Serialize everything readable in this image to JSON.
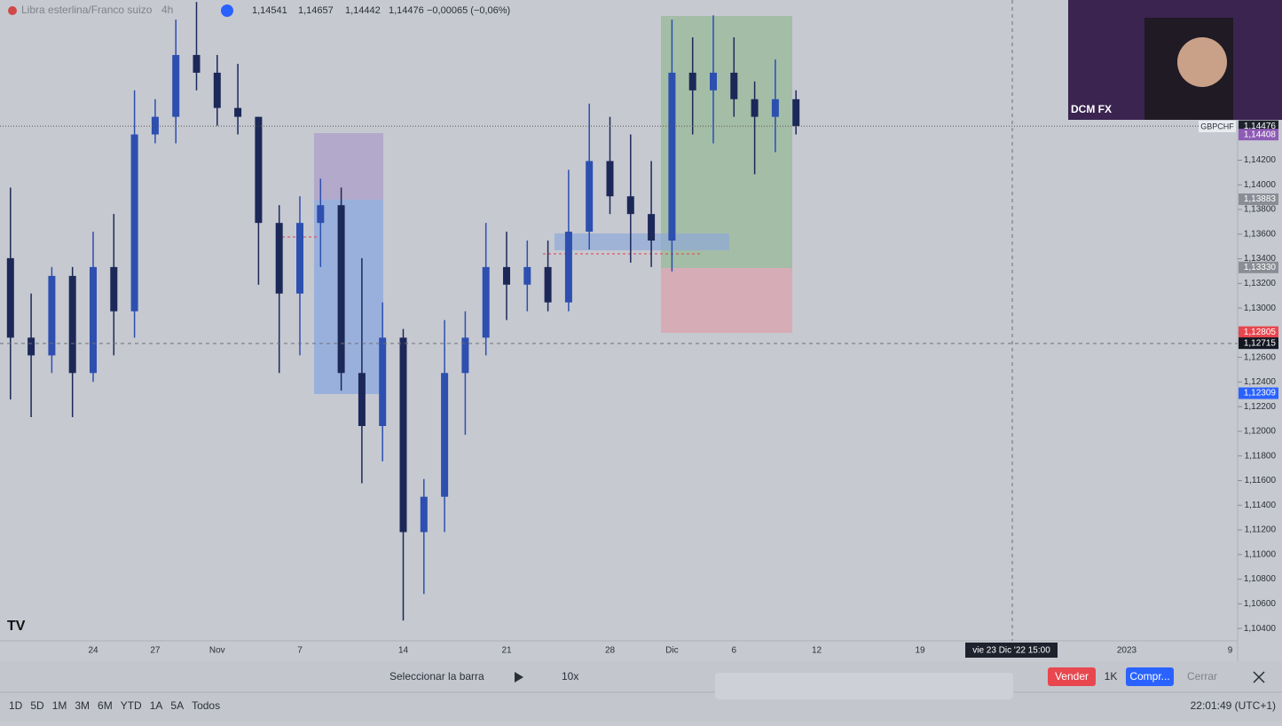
{
  "header": {
    "symbol": "Libra esterlina/Franco suizo",
    "interval": "4h",
    "open": "1,14541",
    "high": "1,14657",
    "low": "1,14442",
    "close": "1,14476",
    "change": "−0,00065 (−0,06%)"
  },
  "chart_data": {
    "type": "candlestick",
    "categories": [
      null,
      null,
      null,
      null,
      "24",
      null,
      null,
      "27",
      null,
      null,
      "Nov",
      null,
      null,
      null,
      "7",
      null,
      null,
      null,
      null,
      "14",
      null,
      null,
      null,
      null,
      "21",
      null,
      null,
      null,
      null,
      "28",
      null,
      null,
      "Dic",
      null,
      null,
      "6",
      null,
      null,
      null,
      "12",
      null,
      null,
      null,
      null,
      "19",
      null,
      null,
      null,
      null,
      null,
      null,
      null,
      null,
      null,
      "2023",
      null,
      null,
      null,
      null,
      "9"
    ],
    "open": [
      1.13405,
      1.1276,
      1.12616,
      1.13261,
      1.12473,
      1.13333,
      1.12974,
      1.14409,
      1.14552,
      1.15054,
      1.1491,
      1.14624,
      1.14552,
      1.13691,
      1.13118,
      1.13691,
      1.13835,
      1.12473,
      1.12043,
      1.1276,
      1.11182,
      1.11469,
      1.12473,
      1.1276,
      1.13333,
      1.1319,
      1.13333,
      1.13046,
      1.1362,
      1.14193,
      1.13907,
      1.13763,
      1.13548,
      1.1491,
      1.14767,
      1.1491,
      1.14695,
      1.14552,
      1.14695,
      null,
      null,
      null,
      null,
      null,
      null,
      null,
      null,
      null,
      null,
      null,
      null,
      null,
      null,
      null,
      null,
      null,
      null,
      null,
      null,
      null
    ],
    "high": [
      1.13978,
      1.13118,
      1.13333,
      1.13333,
      1.1362,
      1.13763,
      1.14767,
      1.14695,
      1.15341,
      1.15484,
      1.15054,
      1.14982,
      1.14552,
      1.13835,
      1.13907,
      1.1405,
      1.13978,
      1.13405,
      1.13046,
      1.12831,
      1.11613,
      1.12903,
      1.12974,
      1.13691,
      1.1362,
      1.13548,
      1.13548,
      1.14122,
      1.14659,
      1.14552,
      1.14409,
      1.14193,
      1.15341,
      1.15197,
      1.15376,
      1.15197,
      1.14839,
      1.15018,
      1.14767,
      null,
      null,
      null,
      null,
      null,
      null,
      null,
      null,
      null,
      null,
      null,
      null,
      null,
      null,
      null,
      null,
      null,
      null,
      null,
      null,
      null
    ],
    "low": [
      1.12258,
      1.12115,
      1.12473,
      1.12115,
      1.12401,
      1.12616,
      1.1276,
      1.14337,
      1.14337,
      1.14767,
      1.1448,
      1.14409,
      1.1319,
      1.12473,
      1.12616,
      1.13333,
      1.1233,
      1.11578,
      1.11757,
      1.10465,
      1.1068,
      1.11182,
      1.11972,
      1.12616,
      1.12903,
      1.12974,
      1.12974,
      1.12974,
      1.13476,
      1.13763,
      1.13369,
      1.13333,
      1.13297,
      1.14409,
      1.14337,
      1.14552,
      1.14086,
      1.14265,
      1.14409,
      null,
      null,
      null,
      null,
      null,
      null,
      null,
      null,
      null,
      null,
      null,
      null,
      null,
      null,
      null,
      null,
      null,
      null,
      null,
      null,
      null
    ],
    "close": [
      1.1276,
      1.12616,
      1.13261,
      1.12473,
      1.13333,
      1.12974,
      1.14409,
      1.14552,
      1.15054,
      1.1491,
      1.14624,
      1.14552,
      1.13691,
      1.13118,
      1.13691,
      1.13835,
      1.12473,
      1.12043,
      1.1276,
      1.11182,
      1.11469,
      1.12473,
      1.1276,
      1.13333,
      1.1319,
      1.13333,
      1.13046,
      1.1362,
      1.14193,
      1.13907,
      1.13763,
      1.13548,
      1.1491,
      1.14767,
      1.1491,
      1.14695,
      1.14552,
      1.14695,
      1.14476,
      null,
      null,
      null,
      null,
      null,
      null,
      null,
      null,
      null,
      null,
      null,
      null,
      null,
      null,
      null,
      null,
      null,
      null,
      null,
      null,
      null
    ],
    "up_color": "#2d4fb0",
    "down_color": "#1c2858",
    "ylim": [
      1.103,
      1.155
    ],
    "yticks": [
      {
        "value": 1.104,
        "label": "1,10400"
      },
      {
        "value": 1.106,
        "label": "1,10600"
      },
      {
        "value": 1.108,
        "label": "1,10800"
      },
      {
        "value": 1.11,
        "label": "1,11000"
      },
      {
        "value": 1.112,
        "label": "1,11200"
      },
      {
        "value": 1.114,
        "label": "1,11400"
      },
      {
        "value": 1.116,
        "label": "1,11600"
      },
      {
        "value": 1.118,
        "label": "1,11800"
      },
      {
        "value": 1.12,
        "label": "1,12000"
      },
      {
        "value": 1.122,
        "label": "1,12200"
      },
      {
        "value": 1.124,
        "label": "1,12400"
      },
      {
        "value": 1.126,
        "label": "1,12600"
      },
      {
        "value": 1.128,
        "label": "1,12800"
      },
      {
        "value": 1.13,
        "label": "1,13000"
      },
      {
        "value": 1.132,
        "label": "1,13200"
      },
      {
        "value": 1.134,
        "label": "1,13400"
      },
      {
        "value": 1.136,
        "label": "1,13600"
      },
      {
        "value": 1.138,
        "label": "1,13800"
      },
      {
        "value": 1.14,
        "label": "1,14000"
      },
      {
        "value": 1.142,
        "label": "1,14200"
      }
    ],
    "price_tags": [
      {
        "value": 1.14476,
        "label": "1,14476",
        "color": "#1e222d"
      },
      {
        "value": 1.14408,
        "label": "1,14408",
        "color": "#8e5bb5"
      },
      {
        "value": 1.13883,
        "label": "1,13883",
        "color": "#8a8d95"
      },
      {
        "value": 1.1333,
        "label": "1,13330",
        "color": "#8a8d95"
      },
      {
        "value": 1.12805,
        "label": "1,12805",
        "color": "#e8474f"
      },
      {
        "value": 1.12715,
        "label": "1,12715",
        "color": "#131722"
      },
      {
        "value": 1.12309,
        "label": "1,12309",
        "color": "#2962ff"
      }
    ],
    "symbol_tag": "GBPCHF",
    "crosshair_time": "vie 23 Dic '22  15:00"
  },
  "webcam": {
    "label": "DCM FX"
  },
  "replay": {
    "select": "Seleccionar la barra",
    "speed": "10x"
  },
  "trade": {
    "sell": "Vender",
    "size": "1K",
    "buy": "Compr...",
    "close": "Cerrar"
  },
  "ranges": [
    "1D",
    "5D",
    "1M",
    "3M",
    "6M",
    "YTD",
    "1A",
    "5A",
    "Todos"
  ],
  "clock": "22:01:49 (UTC+1)"
}
